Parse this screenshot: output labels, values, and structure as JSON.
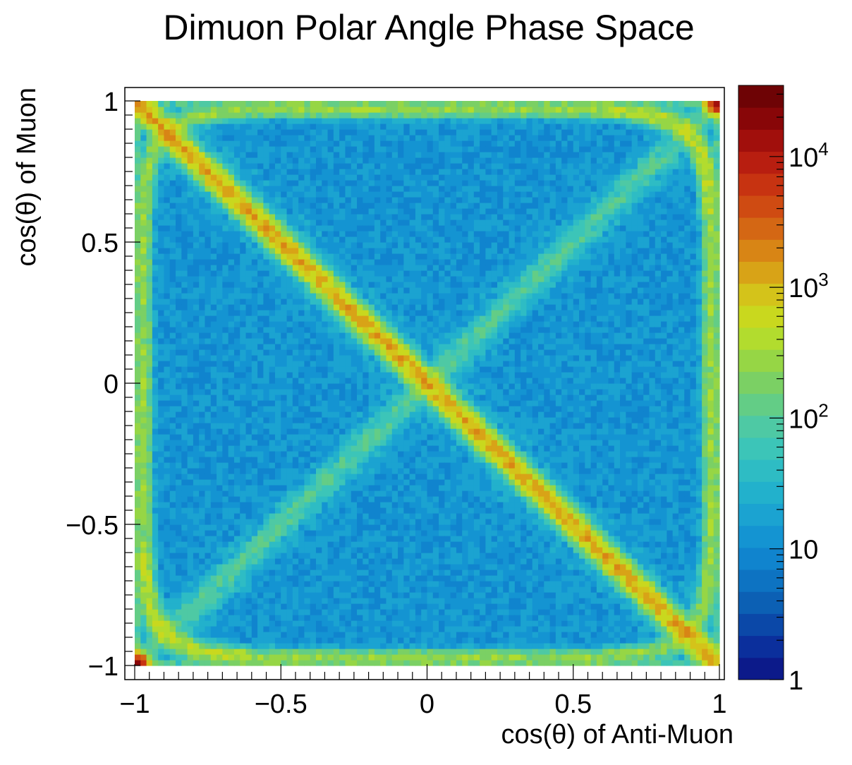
{
  "chart_data": {
    "type": "heatmap",
    "title": "Dimuon Polar Angle Phase Space",
    "xlabel": "cos(θ) of Anti-Muon",
    "ylabel": "cos(θ) of Muon",
    "xlim": [
      -1.0,
      1.0
    ],
    "ylim": [
      -1.0,
      1.0
    ],
    "x_ticks": [
      {
        "value": -1,
        "label": "−1"
      },
      {
        "value": -0.5,
        "label": "−0.5"
      },
      {
        "value": 0,
        "label": "0"
      },
      {
        "value": 0.5,
        "label": "0.5"
      },
      {
        "value": 1,
        "label": "1"
      }
    ],
    "y_ticks": [
      {
        "value": -1,
        "label": "−1"
      },
      {
        "value": -0.5,
        "label": "−0.5"
      },
      {
        "value": 0,
        "label": "0"
      },
      {
        "value": 0.5,
        "label": "0.5"
      },
      {
        "value": 1,
        "label": "1"
      }
    ],
    "bins": [
      100,
      100
    ],
    "colorbar": {
      "scale": "log",
      "range": [
        1,
        35000
      ],
      "ticks": [
        {
          "value": 1,
          "base": "1",
          "exp": ""
        },
        {
          "value": 10,
          "base": "10",
          "exp": ""
        },
        {
          "value": 100,
          "base": "10",
          "exp": "2"
        },
        {
          "value": 1000,
          "base": "10",
          "exp": "3"
        },
        {
          "value": 10000,
          "base": "10",
          "exp": "4"
        }
      ]
    },
    "features": {
      "background_count": 25,
      "depleted_lobe_count": 12,
      "anti_diagonal_peak": 1200,
      "rounded_square_ridge_peak": 450,
      "diagonal_ridge_peak": 70,
      "corner_peak": 20000,
      "rounded_square_half_width": 0.97
    },
    "palette": [
      "#0c1a8a",
      "#0b2f9c",
      "#0b48a8",
      "#0c60b4",
      "#0d73c2",
      "#1084ce",
      "#1494d2",
      "#1ba3d1",
      "#22b1cc",
      "#2ebcc4",
      "#3cc5b8",
      "#4ec9a4",
      "#63cd86",
      "#7bd064",
      "#96d645",
      "#b2dc2e",
      "#c9d81e",
      "#d4c31a",
      "#d8a317",
      "#d88515",
      "#d46714",
      "#cf4b12",
      "#c73311",
      "#b81e10",
      "#a10f0c",
      "#880608",
      "#6e0305"
    ],
    "axis_color": "#000000",
    "background_color": "#ffffff"
  }
}
